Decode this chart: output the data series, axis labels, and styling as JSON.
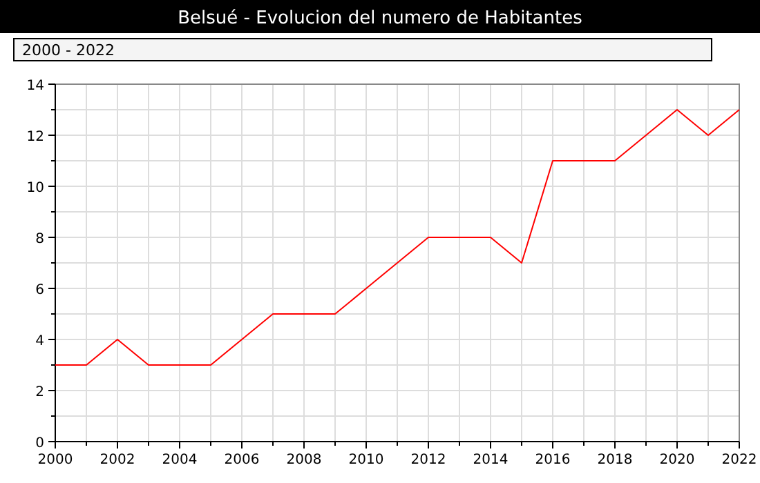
{
  "chart_data": {
    "type": "line",
    "title": "Belsué - Evolucion del numero de Habitantes",
    "subtitle": "2000 - 2022",
    "x": [
      2000,
      2001,
      2002,
      2003,
      2004,
      2005,
      2006,
      2007,
      2008,
      2009,
      2010,
      2011,
      2012,
      2013,
      2014,
      2015,
      2016,
      2017,
      2018,
      2019,
      2020,
      2021,
      2022
    ],
    "series": [
      {
        "color": "#ff0000",
        "values": [
          3,
          3,
          4,
          3,
          3,
          3,
          4,
          5,
          5,
          5,
          6,
          7,
          8,
          8,
          8,
          7,
          11,
          11,
          11,
          12,
          13,
          12,
          13
        ]
      }
    ],
    "xlim": [
      2000,
      2022
    ],
    "xticks": [
      2000,
      {
        "value": 2001,
        "label": null
      },
      2002,
      {
        "value": 2003,
        "label": null
      },
      2004,
      {
        "value": 2005,
        "label": null
      },
      2006,
      {
        "value": 2007,
        "label": null
      },
      2008,
      {
        "value": 2009,
        "label": null
      },
      2010,
      {
        "value": 2011,
        "label": null
      },
      2012,
      {
        "value": 2013,
        "label": null
      },
      2014,
      {
        "value": 2015,
        "label": null
      },
      2016,
      {
        "value": 2017,
        "label": null
      },
      2018,
      {
        "value": 2019,
        "label": null
      },
      2020,
      {
        "value": 2021,
        "label": null
      },
      2022
    ],
    "ylim": [
      0,
      14
    ],
    "yticks": [
      0,
      {
        "value": 1,
        "label": null
      },
      2,
      {
        "value": 3,
        "label": null
      },
      4,
      {
        "value": 5,
        "label": null
      },
      6,
      {
        "value": 7,
        "label": null
      },
      8,
      {
        "value": 9,
        "label": null
      },
      10,
      {
        "value": 11,
        "label": null
      },
      12,
      {
        "value": 13,
        "label": null
      },
      14
    ],
    "grid": true,
    "marker": "none",
    "line_style": "solid"
  }
}
